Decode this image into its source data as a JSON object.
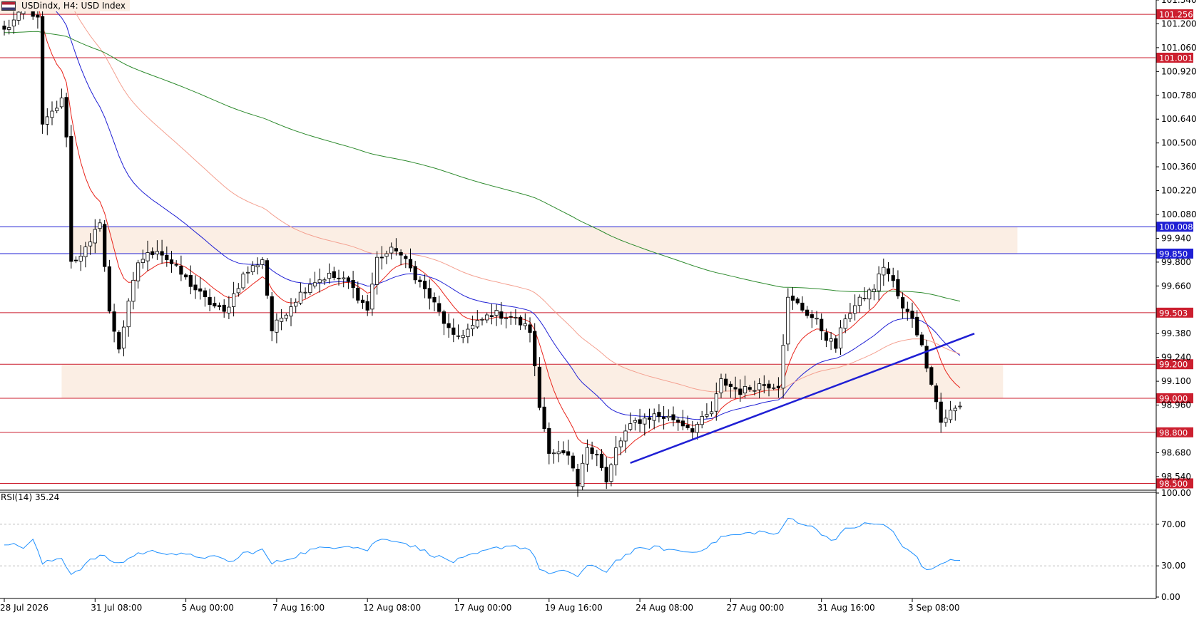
{
  "header": {
    "symbol_label": "USDindx, H4:  USD Index",
    "flag_icon": "us-flag-icon"
  },
  "chart_data": {
    "type": "candlestick",
    "symbol": "USDindx",
    "timeframe": "H4",
    "price_axis": {
      "ylim": [
        98.46,
        101.34
      ],
      "ticks": [
        "101.340",
        "101.200",
        "101.060",
        "100.920",
        "100.780",
        "100.640",
        "100.500",
        "100.360",
        "100.220",
        "100.080",
        "99.940",
        "99.800",
        "99.660",
        "99.380",
        "99.240",
        "99.100",
        "98.960",
        "98.680",
        "98.540"
      ]
    },
    "time_axis": {
      "bar_count": 248,
      "ticks": [
        {
          "label": "28 Jul 2026",
          "bar": 0
        },
        {
          "label": "31 Jul 08:00",
          "bar": 19
        },
        {
          "label": "5 Aug 00:00",
          "bar": 38
        },
        {
          "label": "7 Aug 16:00",
          "bar": 57
        },
        {
          "label": "12 Aug 08:00",
          "bar": 76
        },
        {
          "label": "17 Aug 00:00",
          "bar": 95
        },
        {
          "label": "19 Aug 16:00",
          "bar": 114
        },
        {
          "label": "24 Aug 08:00",
          "bar": 133
        },
        {
          "label": "27 Aug 00:00",
          "bar": 152
        },
        {
          "label": "31 Aug 16:00",
          "bar": 171
        },
        {
          "label": "3 Sep 08:00",
          "bar": 190
        }
      ]
    },
    "anchors": [
      [
        0,
        101.16
      ],
      [
        5,
        101.3
      ],
      [
        7,
        101.22
      ],
      [
        8,
        100.6
      ],
      [
        12,
        100.75
      ],
      [
        13,
        100.55
      ],
      [
        14,
        99.8
      ],
      [
        18,
        99.9
      ],
      [
        20,
        100.05
      ],
      [
        22,
        99.5
      ],
      [
        24,
        99.3
      ],
      [
        28,
        99.8
      ],
      [
        32,
        99.88
      ],
      [
        38,
        99.7
      ],
      [
        42,
        99.58
      ],
      [
        46,
        99.5
      ],
      [
        50,
        99.72
      ],
      [
        54,
        99.82
      ],
      [
        56,
        99.4
      ],
      [
        60,
        99.55
      ],
      [
        64,
        99.68
      ],
      [
        68,
        99.72
      ],
      [
        72,
        99.68
      ],
      [
        76,
        99.52
      ],
      [
        78,
        99.82
      ],
      [
        82,
        99.88
      ],
      [
        86,
        99.72
      ],
      [
        90,
        99.55
      ],
      [
        94,
        99.35
      ],
      [
        98,
        99.42
      ],
      [
        102,
        99.5
      ],
      [
        106,
        99.48
      ],
      [
        110,
        99.4
      ],
      [
        112,
        98.95
      ],
      [
        114,
        98.7
      ],
      [
        118,
        98.65
      ],
      [
        120,
        98.48
      ],
      [
        122,
        98.72
      ],
      [
        124,
        98.68
      ],
      [
        126,
        98.5
      ],
      [
        128,
        98.7
      ],
      [
        130,
        98.8
      ],
      [
        132,
        98.86
      ],
      [
        136,
        98.9
      ],
      [
        140,
        98.88
      ],
      [
        144,
        98.82
      ],
      [
        148,
        98.92
      ],
      [
        150,
        99.1
      ],
      [
        154,
        99.04
      ],
      [
        158,
        99.08
      ],
      [
        162,
        99.08
      ],
      [
        164,
        99.58
      ],
      [
        166,
        99.55
      ],
      [
        170,
        99.45
      ],
      [
        172,
        99.36
      ],
      [
        174,
        99.3
      ],
      [
        176,
        99.48
      ],
      [
        180,
        99.6
      ],
      [
        182,
        99.65
      ],
      [
        184,
        99.78
      ],
      [
        186,
        99.68
      ],
      [
        188,
        99.52
      ],
      [
        190,
        99.48
      ],
      [
        192,
        99.3
      ],
      [
        194,
        99.1
      ],
      [
        196,
        98.86
      ],
      [
        198,
        98.92
      ],
      [
        200,
        98.95
      ]
    ],
    "ema_periods": [
      {
        "color": "#e8231a",
        "period": 10
      },
      {
        "color": "#1f1fd4",
        "period": 30
      },
      {
        "color": "#f4a090",
        "period": 60
      },
      {
        "color": "#2e8b2e",
        "period": 200
      }
    ],
    "horizontal_levels": [
      {
        "value": "101.256",
        "color": "#cc1f2f"
      },
      {
        "value": "101.001",
        "color": "#cc1f2f"
      },
      {
        "value": "100.008",
        "color": "#1f1fd4"
      },
      {
        "value": "99.850",
        "color": "#1f1fd4"
      },
      {
        "value": "99.503",
        "color": "#cc1f2f"
      },
      {
        "value": "99.200",
        "color": "#cc1f2f"
      },
      {
        "value": "99.000",
        "color": "#cc1f2f"
      },
      {
        "value": "98.800",
        "color": "#cc1f2f"
      },
      {
        "value": "98.500",
        "color": "#cc1f2f"
      }
    ],
    "zones": [
      {
        "from": 99.85,
        "to": 100.008,
        "start_bar": 14,
        "end_bar": 212,
        "color": "#fbeee4"
      },
      {
        "from": 99.0,
        "to": 99.2,
        "start_bar": 12,
        "end_bar": 209,
        "color": "#fbeee4"
      },
      {
        "from": 101.256,
        "to": 101.34,
        "start_bar": 0,
        "end_bar": 18,
        "color": "#fbeee4"
      }
    ],
    "trendline": {
      "start": [
        131,
        98.62
      ],
      "end": [
        203,
        99.38
      ],
      "color": "#1f1fd4"
    },
    "rsi": {
      "label": "RSI(14) 35.24",
      "ylim": [
        0,
        100
      ],
      "ticks": [
        "100.00",
        "70.00",
        "30.00",
        "0.00"
      ],
      "levels": [
        70,
        30
      ],
      "color": "#1e90ff",
      "anchors": [
        [
          0,
          52
        ],
        [
          4,
          48
        ],
        [
          6,
          55
        ],
        [
          8,
          32
        ],
        [
          12,
          38
        ],
        [
          14,
          22
        ],
        [
          16,
          28
        ],
        [
          18,
          35
        ],
        [
          20,
          40
        ],
        [
          24,
          32
        ],
        [
          28,
          42
        ],
        [
          32,
          44
        ],
        [
          38,
          40
        ],
        [
          44,
          38
        ],
        [
          48,
          34
        ],
        [
          50,
          42
        ],
        [
          54,
          45
        ],
        [
          56,
          32
        ],
        [
          60,
          38
        ],
        [
          64,
          45
        ],
        [
          68,
          48
        ],
        [
          72,
          50
        ],
        [
          76,
          45
        ],
        [
          78,
          55
        ],
        [
          82,
          55
        ],
        [
          86,
          48
        ],
        [
          90,
          40
        ],
        [
          94,
          34
        ],
        [
          98,
          40
        ],
        [
          102,
          46
        ],
        [
          106,
          50
        ],
        [
          110,
          46
        ],
        [
          112,
          28
        ],
        [
          114,
          22
        ],
        [
          118,
          25
        ],
        [
          120,
          20
        ],
        [
          122,
          30
        ],
        [
          126,
          25
        ],
        [
          128,
          35
        ],
        [
          132,
          45
        ],
        [
          136,
          48
        ],
        [
          140,
          45
        ],
        [
          144,
          43
        ],
        [
          148,
          50
        ],
        [
          150,
          58
        ],
        [
          154,
          60
        ],
        [
          158,
          63
        ],
        [
          162,
          60
        ],
        [
          164,
          76
        ],
        [
          166,
          73
        ],
        [
          170,
          65
        ],
        [
          172,
          58
        ],
        [
          174,
          55
        ],
        [
          176,
          65
        ],
        [
          180,
          70
        ],
        [
          182,
          70
        ],
        [
          184,
          70
        ],
        [
          186,
          62
        ],
        [
          188,
          48
        ],
        [
          190,
          44
        ],
        [
          192,
          30
        ],
        [
          194,
          25
        ],
        [
          196,
          33
        ],
        [
          198,
          35
        ],
        [
          200,
          35
        ]
      ]
    }
  }
}
